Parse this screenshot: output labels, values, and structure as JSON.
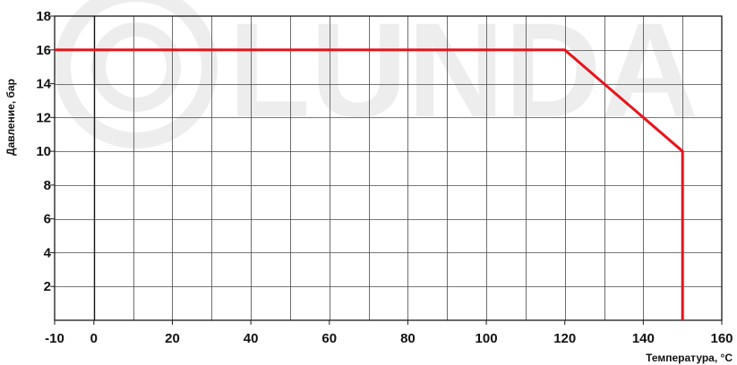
{
  "watermark": {
    "text": "LUNDA",
    "symbol": "©"
  },
  "chart_data": {
    "type": "line",
    "title": "",
    "xlabel": "Температура, °C",
    "ylabel": "Давление, бар",
    "xlim": [
      -10,
      160
    ],
    "ylim": [
      0,
      18
    ],
    "x_ticks": [
      -10,
      0,
      20,
      40,
      60,
      80,
      100,
      120,
      140,
      160
    ],
    "y_ticks": [
      2,
      4,
      6,
      8,
      10,
      12,
      14,
      16,
      18
    ],
    "x_grid_step": 10,
    "y_grid_step": 2,
    "grid": true,
    "series": [
      {
        "color": "#e8141b",
        "points": [
          {
            "x": -10,
            "y": 16
          },
          {
            "x": 120,
            "y": 16
          },
          {
            "x": 130,
            "y": 14
          },
          {
            "x": 140,
            "y": 12
          },
          {
            "x": 150,
            "y": 10
          },
          {
            "x": 150,
            "y": 0
          }
        ]
      }
    ]
  }
}
